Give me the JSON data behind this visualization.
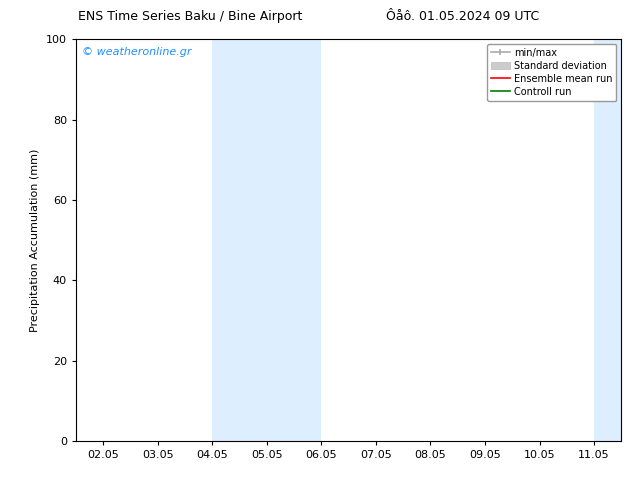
{
  "title_left": "ENS Time Series Baku / Bine Airport",
  "title_right": "Ôåô. 01.05.2024 09 UTC",
  "ylabel": "Precipitation Accumulation (mm)",
  "watermark": "© weatheronline.gr",
  "watermark_color": "#1E90FF",
  "ylim": [
    0,
    100
  ],
  "yticks": [
    0,
    20,
    40,
    60,
    80,
    100
  ],
  "xtick_labels": [
    "02.05",
    "03.05",
    "04.05",
    "05.05",
    "06.05",
    "07.05",
    "08.05",
    "09.05",
    "10.05",
    "11.05"
  ],
  "shaded_color": "#DDEEFF",
  "bg_color": "#FFFFFF",
  "legend_items": [
    {
      "label": "min/max",
      "color": "#AAAAAA",
      "lw": 1.2
    },
    {
      "label": "Standard deviation",
      "color": "#CCCCCC",
      "lw": 6
    },
    {
      "label": "Ensemble mean run",
      "color": "#FF0000",
      "lw": 1.2
    },
    {
      "label": "Controll run",
      "color": "#008000",
      "lw": 1.2
    }
  ]
}
